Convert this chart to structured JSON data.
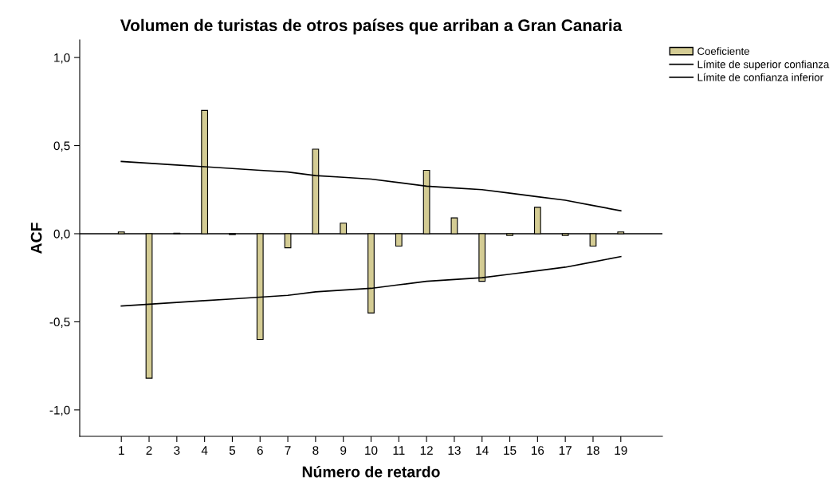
{
  "chart_data": {
    "type": "bar",
    "title": "Volumen de turistas de otros países que arriban a Gran Canaria",
    "xlabel": "Número de retardo",
    "ylabel": "ACF",
    "categories": [
      "1",
      "2",
      "3",
      "4",
      "5",
      "6",
      "7",
      "8",
      "9",
      "10",
      "11",
      "12",
      "13",
      "14",
      "15",
      "16",
      "17",
      "18",
      "19"
    ],
    "series": [
      {
        "name": "Coeficiente",
        "color": "#d4cc94",
        "values": [
          0.01,
          -0.82,
          0.003,
          0.7,
          -0.005,
          -0.6,
          -0.08,
          0.48,
          0.06,
          -0.45,
          -0.07,
          0.36,
          0.09,
          -0.27,
          -0.01,
          0.15,
          -0.01,
          -0.07,
          0.01
        ]
      },
      {
        "name": "Límite de superior confianza",
        "type": "line",
        "color": "#000000",
        "values": [
          0.41,
          0.4,
          0.39,
          0.38,
          0.37,
          0.36,
          0.35,
          0.33,
          0.32,
          0.31,
          0.29,
          0.27,
          0.26,
          0.25,
          0.23,
          0.21,
          0.19,
          0.16,
          0.13
        ]
      },
      {
        "name": "Límite de confianza inferior",
        "type": "line",
        "color": "#000000",
        "values": [
          -0.41,
          -0.4,
          -0.39,
          -0.38,
          -0.37,
          -0.36,
          -0.35,
          -0.33,
          -0.32,
          -0.31,
          -0.29,
          -0.27,
          -0.26,
          -0.25,
          -0.23,
          -0.21,
          -0.19,
          -0.16,
          -0.13
        ]
      }
    ],
    "ylim": [
      -1.15,
      1.1
    ],
    "yticks": [
      {
        "value": -1.0,
        "label": "-1,0"
      },
      {
        "value": -0.5,
        "label": "-0,5"
      },
      {
        "value": 0.0,
        "label": "0,0"
      },
      {
        "value": 0.5,
        "label": "0,5"
      },
      {
        "value": 1.0,
        "label": "1,0"
      }
    ],
    "ref_lines": [
      {
        "axis": "y",
        "value": 0,
        "color": "#000000"
      }
    ],
    "grid": false,
    "legend": "top right"
  }
}
